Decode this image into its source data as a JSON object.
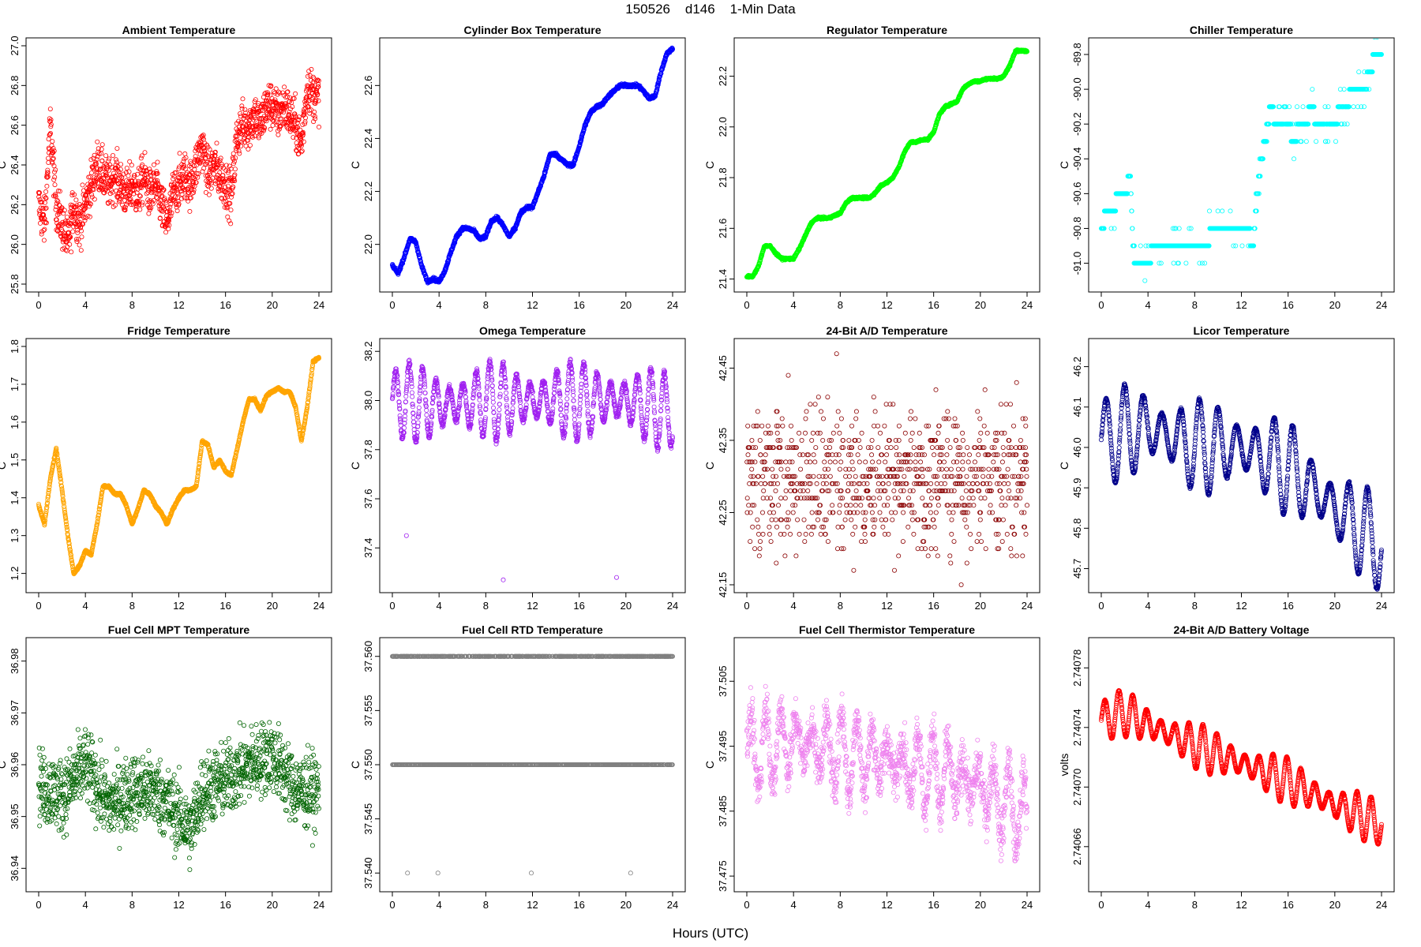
{
  "header": {
    "title": "150526    d146    1-Min Data",
    "x_axis_title": "Hours (UTC)"
  },
  "chart_data": [
    {
      "type": "scatter",
      "title": "Ambient Temperature",
      "xlabel": "",
      "ylabel": "C",
      "color": "#ff0000",
      "xlim": [
        0,
        24
      ],
      "ylim": [
        25.8,
        27.0
      ],
      "xticks": [
        "0",
        "4",
        "8",
        "12",
        "16",
        "20",
        "24"
      ],
      "yticks": [
        "25.8",
        "26.0",
        "26.2",
        "26.4",
        "26.6",
        "26.8",
        "27.0"
      ],
      "x": [
        0,
        0.5,
        1,
        1.5,
        2,
        2.5,
        3,
        3.5,
        4,
        4.5,
        5,
        5.5,
        6,
        6.5,
        7,
        7.5,
        8,
        8.5,
        9,
        9.5,
        10,
        10.5,
        11,
        11.5,
        12,
        12.5,
        13,
        13.5,
        14,
        14.5,
        15,
        15.5,
        16,
        16.5,
        17,
        17.5,
        18,
        18.5,
        19,
        19.5,
        20,
        20.5,
        21,
        21.5,
        22,
        22.5,
        23,
        23.5,
        24
      ],
      "y": [
        26.2,
        26.1,
        26.6,
        26.2,
        26.1,
        26.0,
        26.2,
        26.1,
        26.2,
        26.3,
        26.4,
        26.35,
        26.3,
        26.35,
        26.3,
        26.25,
        26.3,
        26.25,
        26.35,
        26.25,
        26.3,
        26.2,
        26.1,
        26.25,
        26.3,
        26.35,
        26.3,
        26.4,
        26.5,
        26.35,
        26.4,
        26.35,
        26.3,
        26.25,
        26.55,
        26.6,
        26.6,
        26.65,
        26.6,
        26.7,
        26.7,
        26.65,
        26.7,
        26.65,
        26.6,
        26.5,
        26.8,
        26.75,
        26.75
      ],
      "spread": 0.12,
      "draw_points": 1440
    },
    {
      "type": "scatter",
      "title": "Cylinder Box Temperature",
      "xlabel": "",
      "ylabel": "C",
      "color": "#0000ff",
      "xlim": [
        0,
        24
      ],
      "ylim": [
        21.85,
        22.75
      ],
      "xticks": [
        "0",
        "4",
        "8",
        "12",
        "16",
        "20",
        "24"
      ],
      "yticks": [
        "22.0",
        "22.2",
        "22.4",
        "22.6"
      ],
      "ytick_values": [
        22.0,
        22.2,
        22.4,
        22.6
      ],
      "x": [
        0,
        0.5,
        1,
        1.5,
        2,
        2.5,
        3,
        3.5,
        4,
        4.5,
        5,
        5.5,
        6,
        6.5,
        7,
        7.5,
        8,
        8.5,
        9,
        9.5,
        10,
        10.5,
        11,
        11.5,
        12,
        12.5,
        13,
        13.5,
        14,
        14.5,
        15,
        15.5,
        16,
        16.5,
        17,
        17.5,
        18,
        18.5,
        19,
        19.5,
        20,
        20.5,
        21,
        21.5,
        22,
        22.5,
        23,
        23.5,
        24
      ],
      "y": [
        21.92,
        21.89,
        21.95,
        22.02,
        22.01,
        21.92,
        21.86,
        21.87,
        21.86,
        21.9,
        21.97,
        22.03,
        22.06,
        22.06,
        22.05,
        22.02,
        22.03,
        22.09,
        22.1,
        22.07,
        22.03,
        22.06,
        22.12,
        22.14,
        22.14,
        22.2,
        22.26,
        22.34,
        22.34,
        22.32,
        22.3,
        22.3,
        22.37,
        22.45,
        22.5,
        22.52,
        22.53,
        22.56,
        22.58,
        22.6,
        22.6,
        22.6,
        22.6,
        22.58,
        22.55,
        22.56,
        22.65,
        22.72,
        22.74
      ],
      "spread": 0.006,
      "draw_points": 1440
    },
    {
      "type": "scatter",
      "title": "Regulator Temperature",
      "xlabel": "",
      "ylabel": "C",
      "color": "#00ff00",
      "xlim": [
        0,
        24
      ],
      "ylim": [
        21.38,
        22.32
      ],
      "xticks": [
        "0",
        "4",
        "8",
        "12",
        "16",
        "20",
        "24"
      ],
      "yticks": [
        "21.4",
        "21.6",
        "21.8",
        "22.0",
        "22.2"
      ],
      "ytick_values": [
        21.4,
        21.6,
        21.8,
        22.0,
        22.2
      ],
      "x": [
        0,
        0.5,
        1,
        1.5,
        2,
        2.5,
        3,
        3.5,
        4,
        4.5,
        5,
        5.5,
        6,
        6.5,
        7,
        7.5,
        8,
        8.5,
        9,
        9.5,
        10,
        10.5,
        11,
        11.5,
        12,
        12.5,
        13,
        13.5,
        14,
        14.5,
        15,
        15.5,
        16,
        16.5,
        17,
        17.5,
        18,
        18.5,
        19,
        19.5,
        20,
        20.5,
        21,
        21.5,
        22,
        22.5,
        23,
        23.5,
        24
      ],
      "y": [
        21.41,
        21.41,
        21.45,
        21.53,
        21.53,
        21.5,
        21.48,
        21.48,
        21.48,
        21.52,
        21.57,
        21.62,
        21.64,
        21.64,
        21.64,
        21.65,
        21.66,
        21.7,
        21.72,
        21.72,
        21.72,
        21.72,
        21.74,
        21.77,
        21.78,
        21.8,
        21.84,
        21.9,
        21.94,
        21.94,
        21.95,
        21.95,
        21.98,
        22.05,
        22.08,
        22.09,
        22.1,
        22.15,
        22.17,
        22.18,
        22.18,
        22.19,
        22.19,
        22.19,
        22.2,
        22.24,
        22.3,
        22.3,
        22.3
      ],
      "spread": 0.004,
      "draw_points": 1440
    },
    {
      "type": "scatter",
      "title": "Chiller Temperature",
      "xlabel": "",
      "ylabel": "C",
      "color": "#00ffff",
      "xlim": [
        0,
        24
      ],
      "ylim": [
        -91.12,
        -89.75
      ],
      "xticks": [
        "0",
        "4",
        "8",
        "12",
        "16",
        "20",
        "24"
      ],
      "yticks": [
        "-91.0",
        "-90.8",
        "-90.6",
        "-90.4",
        "-90.2",
        "-90.0",
        "-89.8"
      ],
      "ytick_values": [
        -91.0,
        -90.8,
        -90.6,
        -90.4,
        -90.2,
        -90.0,
        -89.8
      ],
      "x": [
        0,
        0.5,
        1,
        1.5,
        2,
        2.5,
        2.7,
        3,
        3.5,
        4,
        4.5,
        5,
        5.5,
        6,
        6.5,
        7,
        7.5,
        8,
        8.5,
        9,
        9.5,
        10,
        10.5,
        11,
        11.5,
        12,
        12.5,
        13,
        13.5,
        14,
        14.5,
        15,
        15.5,
        16,
        16.5,
        17,
        17.5,
        18,
        18.5,
        19,
        19.5,
        20,
        20.5,
        21,
        21.5,
        22,
        22.5,
        23,
        23.5,
        24
      ],
      "y": [
        -90.8,
        -90.7,
        -90.7,
        -90.6,
        -90.6,
        -90.5,
        -90.9,
        -91.0,
        -91.0,
        -91.0,
        -90.9,
        -90.9,
        -90.9,
        -90.9,
        -90.9,
        -90.9,
        -90.9,
        -90.9,
        -90.9,
        -90.9,
        -90.8,
        -90.8,
        -90.8,
        -90.8,
        -90.8,
        -90.8,
        -90.8,
        -90.9,
        -90.5,
        -90.3,
        -90.1,
        -90.2,
        -90.2,
        -90.2,
        -90.3,
        -90.2,
        -90.2,
        -90.1,
        -90.2,
        -90.2,
        -90.2,
        -90.2,
        -90.1,
        -90.1,
        -90.0,
        -90.0,
        -90.0,
        -89.9,
        -89.8,
        -89.8
      ],
      "spread": 0.0,
      "draw_points": 900
    },
    {
      "type": "scatter",
      "title": "Fridge Temperature",
      "xlabel": "",
      "ylabel": "C",
      "color": "#ffa500",
      "xlim": [
        0,
        24
      ],
      "ylim": [
        1.17,
        1.8
      ],
      "xticks": [
        "0",
        "4",
        "8",
        "12",
        "16",
        "20",
        "24"
      ],
      "yticks": [
        "1.2",
        "1.3",
        "1.4",
        "1.5",
        "1.6",
        "1.7",
        "1.8"
      ],
      "ytick_values": [
        1.2,
        1.3,
        1.4,
        1.5,
        1.6,
        1.7,
        1.8
      ],
      "x": [
        0,
        0.5,
        1,
        1.5,
        2,
        2.5,
        3,
        3.5,
        4,
        4.5,
        5,
        5.5,
        6,
        6.5,
        7,
        7.5,
        8,
        8.5,
        9,
        9.5,
        10,
        10.5,
        11,
        11.5,
        12,
        12.5,
        13,
        13.5,
        14,
        14.5,
        15,
        15.5,
        16,
        16.5,
        17,
        17.5,
        18,
        18.5,
        19,
        19.5,
        20,
        20.5,
        21,
        21.5,
        22,
        22.5,
        23,
        23.5,
        24
      ],
      "y": [
        1.38,
        1.33,
        1.45,
        1.53,
        1.42,
        1.3,
        1.2,
        1.22,
        1.26,
        1.25,
        1.33,
        1.43,
        1.43,
        1.41,
        1.41,
        1.38,
        1.33,
        1.37,
        1.42,
        1.41,
        1.38,
        1.36,
        1.33,
        1.37,
        1.4,
        1.42,
        1.42,
        1.43,
        1.55,
        1.54,
        1.48,
        1.5,
        1.47,
        1.46,
        1.53,
        1.6,
        1.66,
        1.66,
        1.63,
        1.67,
        1.68,
        1.69,
        1.68,
        1.68,
        1.64,
        1.55,
        1.64,
        1.76,
        1.77
      ],
      "spread": 0.003,
      "draw_points": 1440
    },
    {
      "type": "scatter",
      "title": "Omega Temperature",
      "xlabel": "",
      "ylabel": "C",
      "color": "#a020f0",
      "xlim": [
        0,
        24
      ],
      "ylim": [
        37.25,
        38.22
      ],
      "xticks": [
        "0",
        "4",
        "8",
        "12",
        "16",
        "20",
        "24"
      ],
      "yticks": [
        "37.4",
        "37.6",
        "37.8",
        "38.0",
        "38.2"
      ],
      "ytick_values": [
        37.4,
        37.6,
        37.8,
        38.0,
        38.2
      ],
      "x": [
        0,
        4,
        8,
        12,
        16,
        20,
        24
      ],
      "y": [
        38.0,
        37.98,
        38.0,
        38.0,
        38.0,
        38.0,
        37.95
      ],
      "osc_amplitude": 0.16,
      "osc_period_hours": 1.15,
      "spread": 0.015,
      "outliers": [
        [
          1.2,
          37.45
        ],
        [
          9.5,
          37.27
        ],
        [
          19.2,
          37.28
        ]
      ],
      "draw_points": 1440
    },
    {
      "type": "scatter",
      "title": "24-Bit A/D Temperature",
      "xlabel": "",
      "ylabel": "C",
      "color": "#8b0000",
      "xlim": [
        0,
        24
      ],
      "ylim": [
        42.15,
        42.48
      ],
      "xticks": [
        "0",
        "4",
        "8",
        "12",
        "16",
        "20",
        "24"
      ],
      "yticks": [
        "42.15",
        "42.25",
        "42.35",
        "42.45"
      ],
      "ytick_values": [
        42.15,
        42.25,
        42.35,
        42.45
      ],
      "x": [
        0,
        4,
        8,
        12,
        16,
        20,
        24
      ],
      "y": [
        42.3,
        42.3,
        42.3,
        42.3,
        42.3,
        42.3,
        42.3
      ],
      "quantum": 0.01,
      "spread": 0.045,
      "draw_points": 1440
    },
    {
      "type": "scatter",
      "title": "Licor Temperature",
      "xlabel": "",
      "ylabel": "C",
      "color": "#00008b",
      "xlim": [
        0,
        24
      ],
      "ylim": [
        45.66,
        46.25
      ],
      "xticks": [
        "0",
        "4",
        "8",
        "12",
        "16",
        "20",
        "24"
      ],
      "yticks": [
        "45.7",
        "45.8",
        "45.9",
        "46.0",
        "46.1",
        "46.2"
      ],
      "ytick_values": [
        45.7,
        45.8,
        45.9,
        46.0,
        46.1,
        46.2
      ],
      "x": [
        0,
        4,
        8,
        12,
        16,
        20,
        24
      ],
      "y": [
        46.02,
        46.05,
        46.0,
        46.0,
        45.95,
        45.85,
        45.75
      ],
      "osc_amplitude": 0.12,
      "osc_period_hours": 1.6,
      "spread": 0.004,
      "draw_points": 1440
    },
    {
      "type": "scatter",
      "title": "Fuel Cell MPT Temperature",
      "xlabel": "",
      "ylabel": "C",
      "color": "#006400",
      "xlim": [
        0,
        24
      ],
      "ylim": [
        36.937,
        36.983
      ],
      "xticks": [
        "0",
        "4",
        "8",
        "12",
        "16",
        "20",
        "24"
      ],
      "yticks": [
        "36.94",
        "36.95",
        "36.96",
        "36.97",
        "36.98"
      ],
      "ytick_values": [
        36.94,
        36.95,
        36.96,
        36.97,
        36.98
      ],
      "x": [
        0,
        2,
        4,
        6,
        8,
        10,
        12,
        13,
        14,
        16,
        18,
        20,
        22,
        24
      ],
      "y": [
        36.956,
        36.954,
        36.96,
        36.952,
        36.955,
        36.955,
        36.95,
        36.947,
        36.955,
        36.957,
        36.96,
        36.962,
        36.955,
        36.955
      ],
      "spread": 0.007,
      "draw_points": 1440
    },
    {
      "type": "scatter",
      "title": "Fuel Cell RTD Temperature",
      "xlabel": "",
      "ylabel": "C",
      "color": "#808080",
      "xlim": [
        0,
        24
      ],
      "ylim": [
        37.539,
        37.561
      ],
      "xticks": [
        "0",
        "4",
        "8",
        "12",
        "16",
        "20",
        "24"
      ],
      "yticks": [
        "37.540",
        "37.545",
        "37.550",
        "37.555",
        "37.560"
      ],
      "ytick_values": [
        37.54,
        37.545,
        37.55,
        37.555,
        37.56
      ],
      "x": [
        0,
        24
      ],
      "y": [
        37.55,
        37.55
      ],
      "levels": [
        37.55,
        37.56
      ],
      "outliers": [
        [
          1.3,
          37.54
        ],
        [
          3.9,
          37.54
        ],
        [
          11.9,
          37.54
        ],
        [
          20.4,
          37.54
        ]
      ],
      "draw_points": 1440
    },
    {
      "type": "scatter",
      "title": "Fuel Cell Thermistor Temperature",
      "xlabel": "",
      "ylabel": "C",
      "color": "#ee82ee",
      "xlim": [
        0,
        24
      ],
      "ylim": [
        37.4738,
        37.5105
      ],
      "xticks": [
        "0",
        "4",
        "8",
        "12",
        "16",
        "20",
        "24"
      ],
      "yticks": [
        "37.475",
        "37.485",
        "37.495",
        "37.505"
      ],
      "ytick_values": [
        37.475,
        37.485,
        37.495,
        37.505
      ],
      "x": [
        0,
        4,
        8,
        12,
        16,
        20,
        24
      ],
      "y": [
        37.494,
        37.496,
        37.494,
        37.493,
        37.491,
        37.489,
        37.484
      ],
      "osc_amplitude": 0.0065,
      "osc_period_hours": 1.3,
      "spread": 0.0035,
      "draw_points": 1440
    },
    {
      "type": "scatter",
      "title": "24-Bit A/D Battery Voltage",
      "xlabel": "",
      "ylabel": "volts",
      "color": "#ff0000",
      "xlim": [
        0,
        24
      ],
      "ylim": [
        2.740635,
        2.740795
      ],
      "xticks": [
        "0",
        "4",
        "8",
        "12",
        "16",
        "20",
        "24"
      ],
      "yticks": [
        "2.74066",
        "2.74070",
        "2.74074",
        "2.74078"
      ],
      "ytick_values": [
        2.74066,
        2.7407,
        2.74074,
        2.74078
      ],
      "x": [
        0,
        2,
        4,
        8,
        12,
        16,
        20,
        24
      ],
      "y": [
        2.740745,
        2.74075,
        2.740742,
        2.740728,
        2.740716,
        2.740704,
        2.740688,
        2.740675
      ],
      "osc_amplitude": 1.6e-05,
      "osc_period_hours": 1.2,
      "spread": 5e-07,
      "draw_points": 1440
    }
  ]
}
